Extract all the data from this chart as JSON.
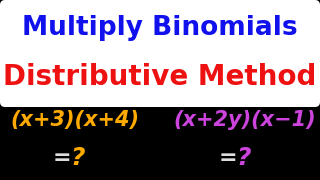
{
  "background_color": "#000000",
  "title1": "Multiply Binomials",
  "title2": "Distributive Method",
  "title1_color": "#1111ee",
  "title2_color": "#ee1111",
  "title_bg_color": "#ffffff",
  "expr1": "(x+3)(x+4)",
  "expr2": "(x+2y)(x−1)",
  "expr1_color": "#ffaa00",
  "expr2_color": "#cc44dd",
  "eq_color": "#dddddd",
  "q1_color": "#ffaa00",
  "q2_color": "#cc44dd",
  "title1_fontsize": 19,
  "title2_fontsize": 20,
  "expr_fontsize": 15,
  "ans_fontsize": 16
}
